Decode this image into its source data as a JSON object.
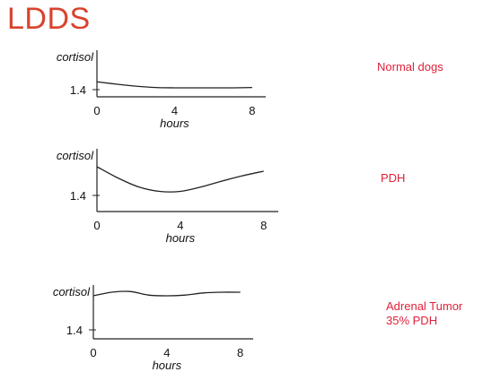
{
  "title": "LDDS",
  "chart_data": [
    {
      "type": "line",
      "label": "Normal dogs",
      "ylabel": "cortisol",
      "xlabel": "hours",
      "x_ticks": [
        "0",
        "4",
        "8"
      ],
      "y_reference": "1.4",
      "x": [
        0,
        1,
        2,
        3,
        4,
        5,
        6,
        7,
        8
      ],
      "y": [
        1.45,
        1.38,
        1.32,
        1.28,
        1.27,
        1.27,
        1.27,
        1.27,
        1.28
      ]
    },
    {
      "type": "line",
      "label": "PDH",
      "ylabel": "cortisol",
      "xlabel": "hours",
      "x_ticks": [
        "0",
        "4",
        "8"
      ],
      "y_reference": "1.4",
      "x": [
        0,
        1,
        2,
        3,
        4,
        5,
        6,
        7,
        8
      ],
      "y": [
        2.0,
        1.75,
        1.55,
        1.45,
        1.45,
        1.55,
        1.68,
        1.8,
        1.9
      ]
    },
    {
      "type": "line",
      "label": "Adrenal Tumor\n35% PDH",
      "ylabel": "cortisol",
      "xlabel": "hours",
      "x_ticks": [
        "0",
        "4",
        "8"
      ],
      "y_reference": "1.4",
      "x": [
        0,
        1,
        2,
        3,
        4,
        5,
        6,
        7,
        8
      ],
      "y": [
        2.2,
        2.3,
        2.32,
        2.22,
        2.2,
        2.22,
        2.28,
        2.3,
        2.3
      ]
    }
  ]
}
